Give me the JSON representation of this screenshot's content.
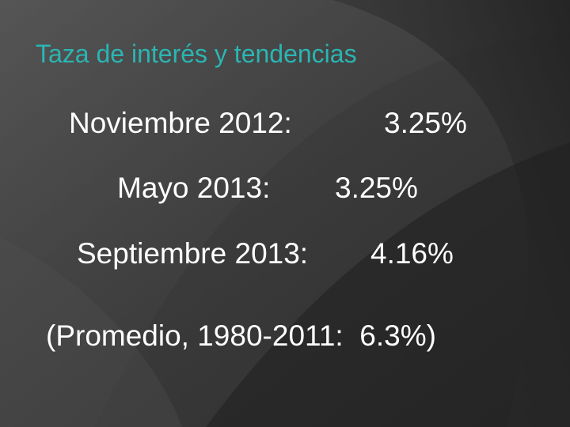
{
  "slide": {
    "title": "Taza de interés y tendencias",
    "lines": [
      {
        "label": "Noviembre 2012:",
        "value": "3.25%"
      },
      {
        "label": "Mayo 2013:",
        "value": "3.25%"
      },
      {
        "label": "Septiembre 2013:",
        "value": "4.16%"
      }
    ],
    "note": "(Promedio, 1980-2011:  6.3%)"
  }
}
